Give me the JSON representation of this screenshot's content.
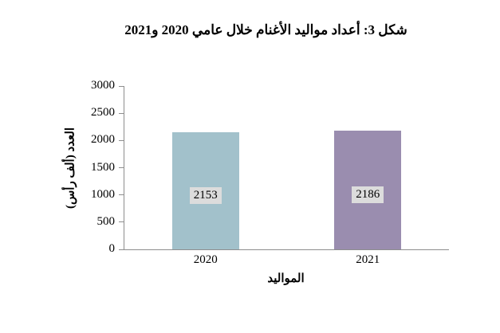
{
  "figure": {
    "title": "شكل 3: أعداد مواليد الأغنام خلال عامي 2020 و2021"
  },
  "chart_data": {
    "type": "bar",
    "title": "شكل 3: أعداد مواليد الأغنام خلال عامي 2020 و2021",
    "categories": [
      "2020",
      "2021"
    ],
    "values": [
      2153,
      2186
    ],
    "data_labels": [
      "2153",
      "2186"
    ],
    "xlabel": "المواليد",
    "ylabel": "العدد (ألف رأس)",
    "ylim": [
      0,
      3000
    ],
    "yticks": [
      0,
      500,
      1000,
      1500,
      2000,
      2500,
      3000
    ],
    "grid": false,
    "legend": false,
    "bar_colors": [
      "#a2c1cb",
      "#9a8daf"
    ],
    "data_label_bg": "#dcdcdc",
    "axis_color": "#8e8e8e",
    "text_color": "#000000",
    "background_color": "#ffffff"
  }
}
